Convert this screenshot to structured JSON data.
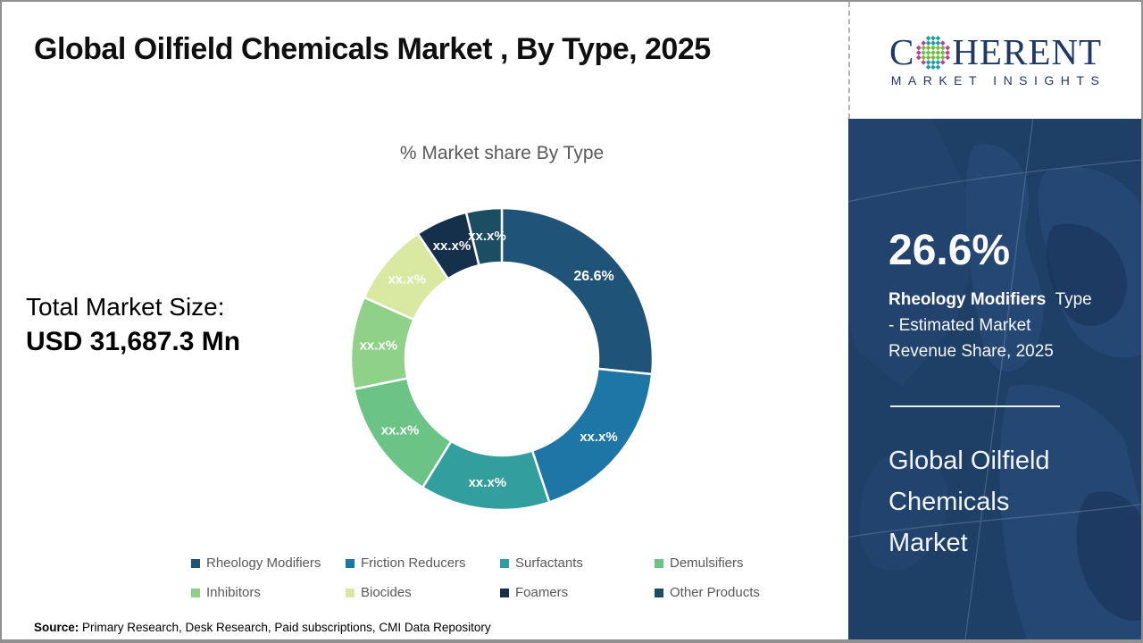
{
  "header": {
    "title": "Global Oilfield Chemicals Market , By Type, 2025"
  },
  "logo": {
    "part1": "C",
    "part2": "HERENT",
    "subtitle": "MARKET INSIGHTS",
    "navy": "#1F3864",
    "dot_teal": "#1FA0A0",
    "dot_green": "#74BD44",
    "dot_magenta": "#BC3E96"
  },
  "left_panel": {
    "label": "Total Market Size:",
    "value": "USD 31,687.3 Mn"
  },
  "chart_data": {
    "type": "pie",
    "donut": true,
    "title": "% Market share By Type",
    "categories": [
      "Rheology Modifiers",
      "Friction Reducers",
      "Surfactants",
      "Demulsifiers",
      "Inhibitors",
      "Biocides",
      "Foamers",
      "Other Products"
    ],
    "values": [
      26.6,
      18.3,
      13.9,
      13.0,
      9.9,
      8.9,
      5.6,
      3.8
    ],
    "labels": [
      "26.6%",
      "xx.x%",
      "xx.x%",
      "xx.x%",
      "xx.x%",
      "xx.x%",
      "xx.x%",
      "xx.x%"
    ],
    "colors": [
      "#1F5377",
      "#1D76A5",
      "#339E9E",
      "#6CC386",
      "#90D18A",
      "#D9E9A2",
      "#14304B",
      "#1C4E63"
    ],
    "label_color": "#ffffff",
    "legend_position": "bottom"
  },
  "sidebar": {
    "bg": "#1E3F66",
    "stat_value": "26.6%",
    "stat_bold": "Rheology Modifiers",
    "stat_line1_rest": "  Type",
    "stat_line2": "- Estimated Market",
    "stat_line3": "Revenue Share, 2025",
    "title_lines": [
      "Global Oilfield",
      "Chemicals",
      "Market"
    ]
  },
  "footer": {
    "source_label": "Source:",
    "source_text": " Primary Research, Desk Research, Paid subscriptions, CMI Data Repository"
  }
}
